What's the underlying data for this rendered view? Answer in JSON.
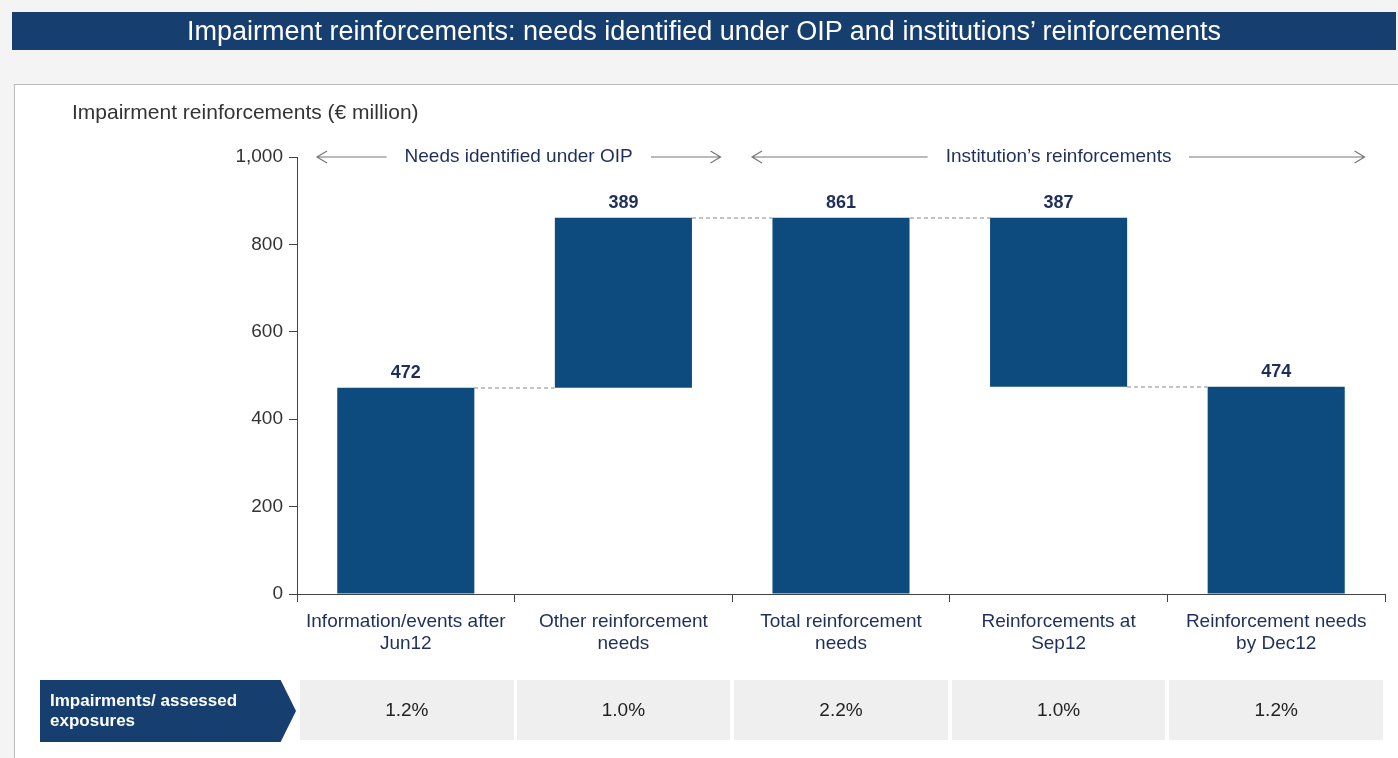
{
  "chart_data": {
    "type": "bar",
    "title": "Impairment reinforcements: needs identified under OIP and institutions’ reinforcements",
    "ylabel": "Impairment reinforcements (€ million)",
    "categories": [
      "Information/events after Jun12",
      "Other reinforcement needs",
      "Total reinforcement needs",
      "Reinforcements at Sep12",
      "Reinforcement needs by Dec12"
    ],
    "values": [
      472,
      389,
      861,
      387,
      474
    ],
    "base": [
      0,
      472,
      0,
      474,
      0
    ],
    "color": "#0d4a7e",
    "ylim": [
      0,
      1000
    ],
    "yticks": [
      0,
      200,
      400,
      600,
      800,
      {
        "value": 1000,
        "label": "1,000"
      }
    ],
    "grid": false,
    "legend": false,
    "data_labels": true,
    "annotations": [
      "Needs identified under OIP",
      "Institution’s reinforcements",
      "Impairments/ assessed exposures",
      "1.2%",
      "1.0%",
      "2.2%",
      "1.0%",
      "1.2%"
    ]
  }
}
